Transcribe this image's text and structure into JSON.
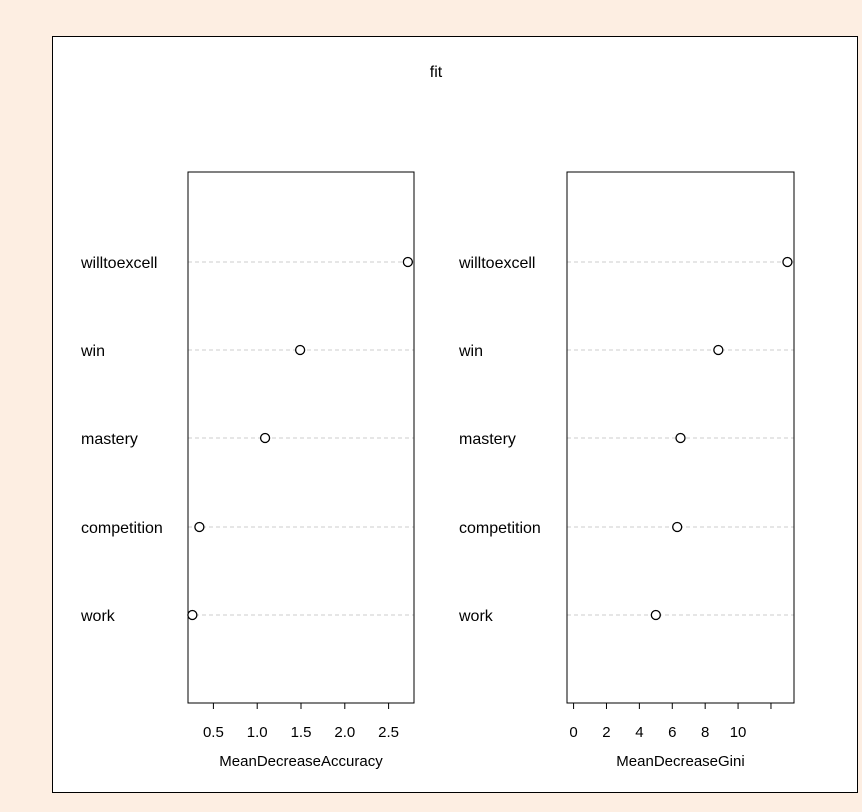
{
  "background_color": "#fdeee2",
  "chart_data": {
    "type": "dotchart",
    "title": "fit",
    "grid": "dashed horizontal",
    "panels": [
      {
        "xlabel": "MeanDecreaseAccuracy",
        "categories": [
          "willtoexcell",
          "win",
          "mastery",
          "competition",
          "work"
        ],
        "values": [
          2.72,
          1.49,
          1.09,
          0.34,
          0.26
        ],
        "xlim": [
          0.21,
          2.79
        ],
        "xticks": [
          0.5,
          1.0,
          1.5,
          2.0,
          2.5
        ],
        "xtick_labels": [
          "0.5",
          "1.0",
          "1.5",
          "2.0",
          "2.5"
        ]
      },
      {
        "xlabel": "MeanDecreaseGini",
        "categories": [
          "willtoexcell",
          "win",
          "mastery",
          "competition",
          "work"
        ],
        "values": [
          13.0,
          8.8,
          6.5,
          6.3,
          5.0
        ],
        "xlim": [
          -0.4,
          13.4
        ],
        "xticks": [
          0,
          2,
          4,
          6,
          8,
          10,
          12
        ],
        "xtick_labels": [
          "0",
          "2",
          "4",
          "6",
          "8",
          "10",
          ""
        ]
      }
    ]
  }
}
